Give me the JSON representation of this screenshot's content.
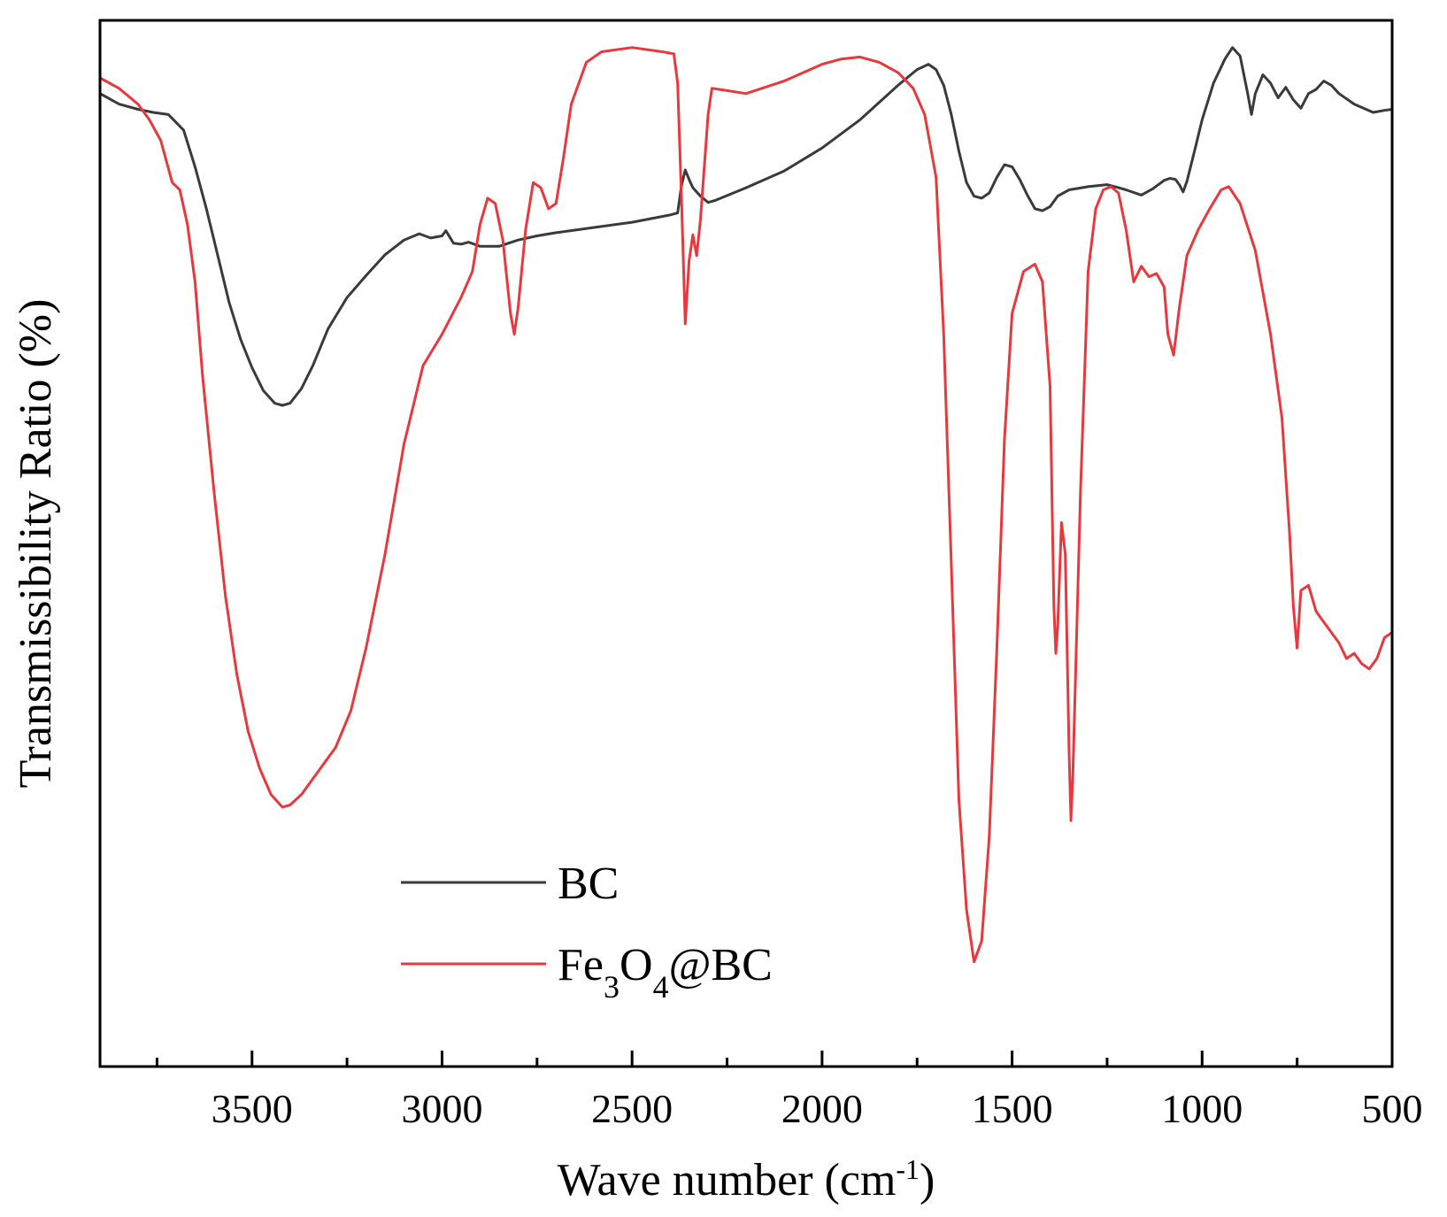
{
  "chart_data": {
    "type": "line",
    "title": "",
    "xlabel": "Wave number (cm-1)",
    "xlabel_parts": {
      "main": "Wave number (cm",
      "sup": "-1",
      "close": ")"
    },
    "ylabel": "Transmissibility Ratio (%)",
    "xlim": [
      3900,
      500
    ],
    "ylim": [
      0,
      100
    ],
    "x_reversed": true,
    "x_ticks": [
      3500,
      3000,
      2500,
      2000,
      1500,
      1000,
      500
    ],
    "x_tick_labels": [
      "3500",
      "3000",
      "2500",
      "2000",
      "1500",
      "1000",
      "500"
    ],
    "x_minor_ticks": [
      3750,
      3250,
      2750,
      2250,
      1750,
      1250,
      750
    ],
    "y_ticks_shown": false,
    "grid": false,
    "legend_position": "bottom-center",
    "series": [
      {
        "name": "BC",
        "legend_label": {
          "main": "BC"
        },
        "color": "#3a3a3a",
        "points": [
          [
            3900,
            93.0
          ],
          [
            3850,
            92.0
          ],
          [
            3800,
            91.5
          ],
          [
            3760,
            91.2
          ],
          [
            3720,
            91.0
          ],
          [
            3680,
            89.5
          ],
          [
            3650,
            86.0
          ],
          [
            3620,
            82.0
          ],
          [
            3590,
            77.5
          ],
          [
            3560,
            73.0
          ],
          [
            3530,
            69.5
          ],
          [
            3500,
            66.8
          ],
          [
            3470,
            64.6
          ],
          [
            3440,
            63.4
          ],
          [
            3420,
            63.2
          ],
          [
            3400,
            63.4
          ],
          [
            3370,
            64.8
          ],
          [
            3340,
            67.0
          ],
          [
            3300,
            70.5
          ],
          [
            3250,
            73.5
          ],
          [
            3200,
            75.6
          ],
          [
            3150,
            77.6
          ],
          [
            3100,
            79.0
          ],
          [
            3060,
            79.6
          ],
          [
            3030,
            79.2
          ],
          [
            3000,
            79.4
          ],
          [
            2990,
            79.9
          ],
          [
            2970,
            78.7
          ],
          [
            2950,
            78.6
          ],
          [
            2930,
            78.8
          ],
          [
            2900,
            78.4
          ],
          [
            2850,
            78.4
          ],
          [
            2800,
            79.0
          ],
          [
            2750,
            79.4
          ],
          [
            2700,
            79.7
          ],
          [
            2600,
            80.2
          ],
          [
            2500,
            80.7
          ],
          [
            2400,
            81.4
          ],
          [
            2380,
            81.6
          ],
          [
            2370,
            84.2
          ],
          [
            2360,
            85.7
          ],
          [
            2350,
            84.8
          ],
          [
            2340,
            84.0
          ],
          [
            2320,
            83.2
          ],
          [
            2300,
            82.6
          ],
          [
            2280,
            82.8
          ],
          [
            2200,
            84.0
          ],
          [
            2100,
            85.6
          ],
          [
            2000,
            87.8
          ],
          [
            1900,
            90.5
          ],
          [
            1800,
            93.8
          ],
          [
            1750,
            95.3
          ],
          [
            1720,
            95.8
          ],
          [
            1700,
            95.3
          ],
          [
            1680,
            93.8
          ],
          [
            1660,
            91.0
          ],
          [
            1640,
            87.5
          ],
          [
            1620,
            84.5
          ],
          [
            1600,
            83.2
          ],
          [
            1580,
            83.0
          ],
          [
            1560,
            83.5
          ],
          [
            1540,
            85.0
          ],
          [
            1520,
            86.2
          ],
          [
            1500,
            86.0
          ],
          [
            1480,
            84.8
          ],
          [
            1460,
            83.3
          ],
          [
            1440,
            82.0
          ],
          [
            1420,
            81.8
          ],
          [
            1400,
            82.2
          ],
          [
            1380,
            83.2
          ],
          [
            1350,
            83.8
          ],
          [
            1300,
            84.1
          ],
          [
            1250,
            84.3
          ],
          [
            1200,
            83.8
          ],
          [
            1160,
            83.3
          ],
          [
            1130,
            83.9
          ],
          [
            1100,
            84.7
          ],
          [
            1085,
            84.9
          ],
          [
            1070,
            84.8
          ],
          [
            1060,
            84.3
          ],
          [
            1050,
            83.6
          ],
          [
            1040,
            84.6
          ],
          [
            1020,
            87.5
          ],
          [
            1000,
            90.5
          ],
          [
            970,
            94.0
          ],
          [
            940,
            96.3
          ],
          [
            920,
            97.4
          ],
          [
            900,
            96.6
          ],
          [
            880,
            93.0
          ],
          [
            870,
            91.0
          ],
          [
            860,
            93.0
          ],
          [
            840,
            94.8
          ],
          [
            820,
            94.0
          ],
          [
            800,
            92.6
          ],
          [
            780,
            93.6
          ],
          [
            760,
            92.4
          ],
          [
            740,
            91.6
          ],
          [
            720,
            93.0
          ],
          [
            700,
            93.4
          ],
          [
            680,
            94.2
          ],
          [
            660,
            93.8
          ],
          [
            640,
            93.0
          ],
          [
            600,
            92.0
          ],
          [
            550,
            91.2
          ],
          [
            520,
            91.4
          ],
          [
            500,
            91.5
          ]
        ]
      },
      {
        "name": "Fe3O4@BC",
        "legend_label": {
          "pre": "Fe",
          "sub1": "3",
          "mid": "O",
          "sub2": "4",
          "post": "@BC"
        },
        "color": "#e8383d",
        "points": [
          [
            3900,
            94.5
          ],
          [
            3850,
            93.5
          ],
          [
            3800,
            92.0
          ],
          [
            3770,
            90.5
          ],
          [
            3740,
            88.5
          ],
          [
            3710,
            84.5
          ],
          [
            3690,
            83.8
          ],
          [
            3670,
            80.5
          ],
          [
            3650,
            75.0
          ],
          [
            3630,
            66.0
          ],
          [
            3600,
            55.0
          ],
          [
            3570,
            45.0
          ],
          [
            3540,
            37.5
          ],
          [
            3510,
            32.0
          ],
          [
            3480,
            28.5
          ],
          [
            3450,
            26.0
          ],
          [
            3420,
            24.8
          ],
          [
            3400,
            25.0
          ],
          [
            3370,
            26.0
          ],
          [
            3330,
            28.0
          ],
          [
            3280,
            30.5
          ],
          [
            3240,
            34.0
          ],
          [
            3200,
            40.0
          ],
          [
            3150,
            49.0
          ],
          [
            3100,
            59.5
          ],
          [
            3050,
            67.0
          ],
          [
            3000,
            70.0
          ],
          [
            2950,
            73.5
          ],
          [
            2920,
            76.0
          ],
          [
            2900,
            80.5
          ],
          [
            2880,
            83.0
          ],
          [
            2860,
            82.5
          ],
          [
            2840,
            79.0
          ],
          [
            2820,
            72.0
          ],
          [
            2810,
            70.0
          ],
          [
            2800,
            72.5
          ],
          [
            2780,
            80.0
          ],
          [
            2760,
            84.5
          ],
          [
            2740,
            84.0
          ],
          [
            2720,
            82.0
          ],
          [
            2700,
            82.5
          ],
          [
            2680,
            87.0
          ],
          [
            2660,
            92.0
          ],
          [
            2620,
            96.0
          ],
          [
            2580,
            97.0
          ],
          [
            2500,
            97.4
          ],
          [
            2420,
            97.0
          ],
          [
            2390,
            96.8
          ],
          [
            2380,
            94.0
          ],
          [
            2370,
            83.0
          ],
          [
            2360,
            71.0
          ],
          [
            2350,
            77.0
          ],
          [
            2340,
            79.5
          ],
          [
            2330,
            77.5
          ],
          [
            2320,
            81.0
          ],
          [
            2300,
            91.0
          ],
          [
            2290,
            93.5
          ],
          [
            2270,
            93.4
          ],
          [
            2200,
            93.0
          ],
          [
            2100,
            94.2
          ],
          [
            2000,
            95.8
          ],
          [
            1950,
            96.3
          ],
          [
            1900,
            96.5
          ],
          [
            1850,
            96.0
          ],
          [
            1800,
            95.0
          ],
          [
            1760,
            93.5
          ],
          [
            1730,
            91.0
          ],
          [
            1700,
            85.0
          ],
          [
            1680,
            70.0
          ],
          [
            1660,
            48.0
          ],
          [
            1640,
            25.5
          ],
          [
            1620,
            15.0
          ],
          [
            1600,
            10.0
          ],
          [
            1580,
            12.0
          ],
          [
            1560,
            22.0
          ],
          [
            1540,
            40.0
          ],
          [
            1520,
            60.0
          ],
          [
            1500,
            72.0
          ],
          [
            1470,
            76.0
          ],
          [
            1440,
            76.7
          ],
          [
            1420,
            75.0
          ],
          [
            1400,
            65.0
          ],
          [
            1390,
            44.0
          ],
          [
            1385,
            39.5
          ],
          [
            1380,
            42.0
          ],
          [
            1370,
            52.0
          ],
          [
            1360,
            49.0
          ],
          [
            1350,
            30.0
          ],
          [
            1345,
            23.5
          ],
          [
            1340,
            28.0
          ],
          [
            1320,
            55.0
          ],
          [
            1300,
            76.0
          ],
          [
            1280,
            82.0
          ],
          [
            1260,
            83.8
          ],
          [
            1240,
            84.1
          ],
          [
            1220,
            83.5
          ],
          [
            1200,
            80.0
          ],
          [
            1180,
            75.0
          ],
          [
            1160,
            76.5
          ],
          [
            1140,
            75.5
          ],
          [
            1120,
            75.8
          ],
          [
            1100,
            74.5
          ],
          [
            1090,
            70.0
          ],
          [
            1075,
            68.0
          ],
          [
            1060,
            72.5
          ],
          [
            1040,
            77.5
          ],
          [
            1010,
            80.0
          ],
          [
            980,
            82.0
          ],
          [
            950,
            83.8
          ],
          [
            930,
            84.1
          ],
          [
            900,
            82.5
          ],
          [
            860,
            78.0
          ],
          [
            820,
            70.0
          ],
          [
            790,
            62.0
          ],
          [
            770,
            51.0
          ],
          [
            760,
            44.0
          ],
          [
            750,
            40.0
          ],
          [
            740,
            45.5
          ],
          [
            720,
            46.0
          ],
          [
            700,
            43.5
          ],
          [
            680,
            42.5
          ],
          [
            660,
            41.5
          ],
          [
            640,
            40.5
          ],
          [
            620,
            39.0
          ],
          [
            600,
            39.5
          ],
          [
            580,
            38.5
          ],
          [
            560,
            38.0
          ],
          [
            540,
            39.0
          ],
          [
            520,
            41.0
          ],
          [
            500,
            41.5
          ]
        ]
      }
    ]
  }
}
